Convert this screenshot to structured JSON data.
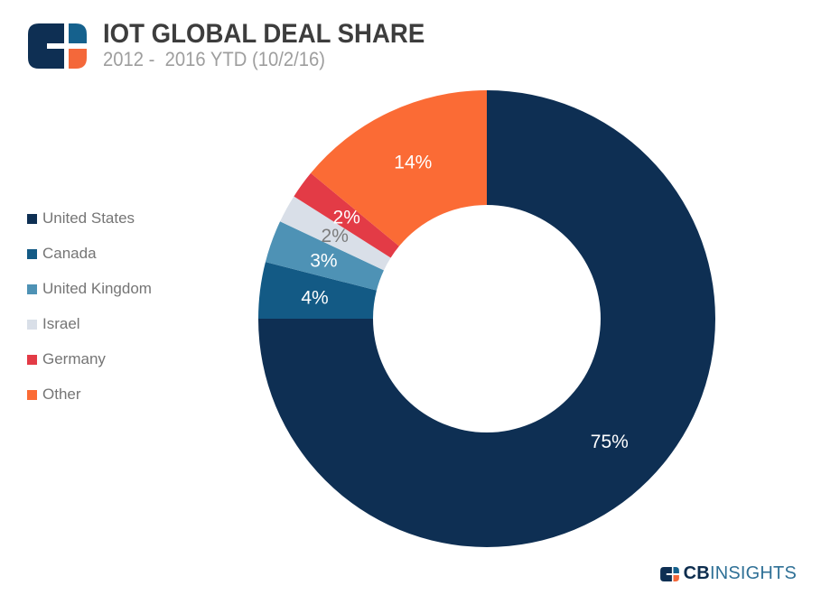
{
  "header": {
    "title": "IOT GLOBAL DEAL SHARE",
    "subtitle": "2012 -  2016 YTD (10/2/16)"
  },
  "brand": {
    "name_bold": "CB",
    "name_light": "INSIGHTS",
    "colors": {
      "navy": "#0e2f53",
      "blue": "#15618d",
      "orange": "#f4683a",
      "text_navy": "#0d2d4e",
      "text_blue": "#2f7096"
    }
  },
  "chart_data": {
    "type": "pie",
    "donut": true,
    "title": "IOT GLOBAL DEAL SHARE",
    "subtitle": "2012 -  2016 YTD (10/2/16)",
    "legend_position": "left",
    "start_angle_deg": 0,
    "clockwise": true,
    "inner_radius_ratio": 0.5,
    "segments": [
      {
        "label": "United States",
        "value": 75,
        "display": "75%",
        "color": "#0e2f53",
        "label_color": "#ffffff"
      },
      {
        "label": "Canada",
        "value": 4,
        "display": "4%",
        "color": "#135a85",
        "label_color": "#ffffff"
      },
      {
        "label": "United Kingdom",
        "value": 3,
        "display": "3%",
        "color": "#4e92b5",
        "label_color": "#ffffff"
      },
      {
        "label": "Israel",
        "value": 2,
        "display": "2%",
        "color": "#d9dfe8",
        "label_color": "#7b7b7b"
      },
      {
        "label": "Germany",
        "value": 2,
        "display": "2%",
        "color": "#e33b46",
        "label_color": "#ffffff"
      },
      {
        "label": "Other",
        "value": 14,
        "display": "14%",
        "color": "#fb6b35",
        "label_color": "#ffffff"
      }
    ]
  }
}
